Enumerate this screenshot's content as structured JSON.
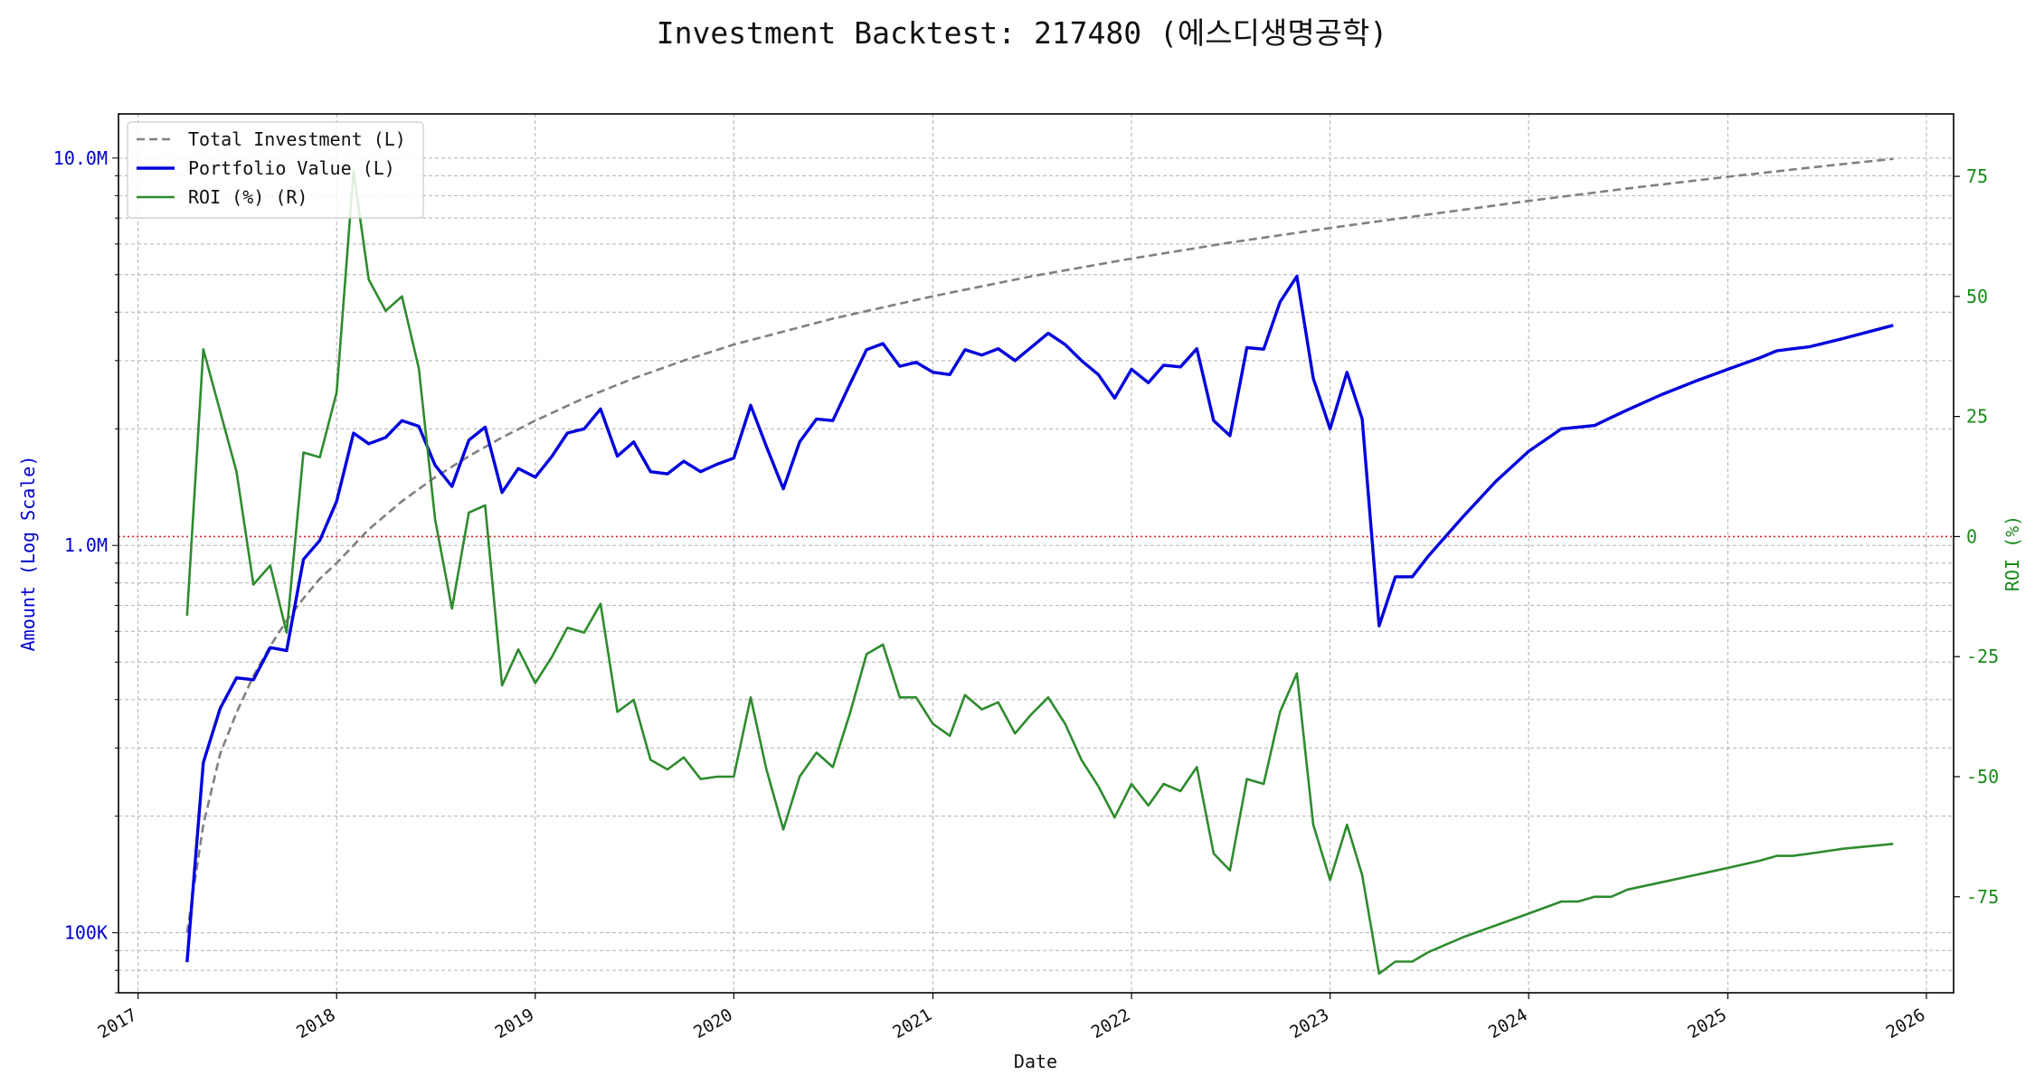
{
  "chart_data": {
    "type": "line",
    "title": "Investment Backtest: 217480 (에스디생명공학)",
    "xlabel": "Date",
    "ylabel_left": "Amount (Log Scale)",
    "ylabel_right": "ROI (%)",
    "x_range": [
      "2016-11-26",
      "2026-02-20"
    ],
    "x_ticks": [
      "2017",
      "2018",
      "2019",
      "2020",
      "2021",
      "2022",
      "2023",
      "2024",
      "2025",
      "2026"
    ],
    "y_left_scale": "log",
    "y_left_range": [
      70000,
      13000000
    ],
    "y_left_ticks": [
      {
        "value": 100000,
        "label": "100K"
      },
      {
        "value": 1000000,
        "label": "1.0M"
      },
      {
        "value": 10000000,
        "label": "10.0M"
      }
    ],
    "y_right_range": [
      -95,
      88
    ],
    "y_right_ticks": [
      -75,
      -50,
      -25,
      0,
      25,
      50,
      75
    ],
    "grid": true,
    "reference_line": {
      "axis": "right",
      "value": 0,
      "color": "#d62728",
      "style": "dotted"
    },
    "legend_position": "top-left",
    "colors": {
      "total_investment": "#808080",
      "portfolio_value": "#0000dd",
      "roi": "#2e8b2e",
      "left_axis": "#0000cc",
      "right_axis": "#1a8a1a"
    },
    "series": [
      {
        "name": "Total Investment (L)",
        "axis": "left",
        "style": "dashed",
        "color": "#808080",
        "x": [
          "2017-04-01",
          "2017-05-01",
          "2017-06-01",
          "2017-07-01",
          "2017-08-01",
          "2017-09-01",
          "2017-10-01",
          "2017-11-01",
          "2017-12-01",
          "2018-01-01",
          "2018-03-01",
          "2018-05-01",
          "2018-07-01",
          "2018-09-01",
          "2018-11-01",
          "2019-01-01",
          "2019-04-01",
          "2019-07-01",
          "2019-10-01",
          "2020-01-01",
          "2020-07-01",
          "2021-01-01",
          "2021-07-01",
          "2022-01-01",
          "2022-07-01",
          "2023-01-01",
          "2023-07-01",
          "2024-01-01",
          "2024-07-01",
          "2025-01-01",
          "2025-07-01",
          "2025-11-01"
        ],
        "values": [
          100000,
          190000,
          290000,
          370000,
          460000,
          550000,
          640000,
          730000,
          820000,
          900000,
          1100000,
          1300000,
          1500000,
          1700000,
          1900000,
          2100000,
          2400000,
          2700000,
          3000000,
          3300000,
          3850000,
          4400000,
          4950000,
          5500000,
          6050000,
          6600000,
          7150000,
          7750000,
          8350000,
          8950000,
          9550000,
          9950000
        ]
      },
      {
        "name": "Portfolio Value (L)",
        "axis": "left",
        "style": "solid",
        "color": "#0000dd",
        "x": [
          "2017-04-01",
          "2017-05-01",
          "2017-06-01",
          "2017-07-01",
          "2017-08-01",
          "2017-09-01",
          "2017-10-01",
          "2017-11-01",
          "2017-12-01",
          "2018-01-01",
          "2018-02-01",
          "2018-03-01",
          "2018-04-01",
          "2018-05-01",
          "2018-06-01",
          "2018-07-01",
          "2018-08-01",
          "2018-09-01",
          "2018-10-01",
          "2018-11-01",
          "2018-12-01",
          "2019-01-01",
          "2019-02-01",
          "2019-03-01",
          "2019-04-01",
          "2019-05-01",
          "2019-06-01",
          "2019-07-01",
          "2019-08-01",
          "2019-09-01",
          "2019-10-01",
          "2019-11-01",
          "2019-12-01",
          "2020-01-01",
          "2020-02-01",
          "2020-03-01",
          "2020-04-01",
          "2020-05-01",
          "2020-06-01",
          "2020-07-01",
          "2020-08-01",
          "2020-09-01",
          "2020-10-01",
          "2020-11-01",
          "2020-12-01",
          "2021-01-01",
          "2021-02-01",
          "2021-03-01",
          "2021-04-01",
          "2021-05-01",
          "2021-06-01",
          "2021-07-01",
          "2021-08-01",
          "2021-09-01",
          "2021-10-01",
          "2021-11-01",
          "2021-12-01",
          "2022-01-01",
          "2022-02-01",
          "2022-03-01",
          "2022-04-01",
          "2022-05-01",
          "2022-06-01",
          "2022-07-01",
          "2022-08-01",
          "2022-09-01",
          "2022-10-01",
          "2022-11-01",
          "2022-12-01",
          "2023-01-01",
          "2023-02-01",
          "2023-03-01",
          "2023-04-01",
          "2023-05-01",
          "2023-06-01",
          "2023-07-01",
          "2023-09-01",
          "2023-11-01",
          "2024-01-01",
          "2024-03-01",
          "2024-04-01",
          "2024-05-01",
          "2024-06-01",
          "2024-07-01",
          "2024-09-01",
          "2024-11-01",
          "2025-01-01",
          "2025-03-01",
          "2025-04-01",
          "2025-05-01",
          "2025-06-01",
          "2025-08-01",
          "2025-11-01"
        ],
        "values": [
          84000,
          275000,
          380000,
          455000,
          450000,
          545000,
          535000,
          920000,
          1030000,
          1300000,
          1950000,
          1830000,
          1900000,
          2100000,
          2030000,
          1610000,
          1420000,
          1870000,
          2020000,
          1370000,
          1580000,
          1500000,
          1700000,
          1950000,
          2000000,
          2250000,
          1700000,
          1850000,
          1550000,
          1530000,
          1650000,
          1550000,
          1620000,
          1680000,
          2300000,
          1800000,
          1400000,
          1850000,
          2120000,
          2100000,
          2600000,
          3200000,
          3320000,
          2900000,
          2970000,
          2800000,
          2760000,
          3200000,
          3100000,
          3220000,
          3000000,
          3250000,
          3530000,
          3300000,
          3000000,
          2760000,
          2400000,
          2850000,
          2630000,
          2920000,
          2890000,
          3220000,
          2100000,
          1920000,
          3240000,
          3210000,
          4250000,
          4950000,
          2700000,
          2000000,
          2800000,
          2120000,
          620000,
          830000,
          830000,
          940000,
          1180000,
          1460000,
          1750000,
          2000000,
          2020000,
          2040000,
          2140000,
          2240000,
          2450000,
          2650000,
          2850000,
          3050000,
          3180000,
          3220000,
          3260000,
          3420000,
          3700000
        ]
      },
      {
        "name": "ROI (%) (R)",
        "axis": "right",
        "style": "solid",
        "color": "#2e8b2e",
        "x": [
          "2017-04-01",
          "2017-05-01",
          "2017-06-01",
          "2017-07-01",
          "2017-08-01",
          "2017-09-01",
          "2017-10-01",
          "2017-11-01",
          "2017-12-01",
          "2018-01-01",
          "2018-02-01",
          "2018-03-01",
          "2018-04-01",
          "2018-05-01",
          "2018-06-01",
          "2018-07-01",
          "2018-08-01",
          "2018-09-01",
          "2018-10-01",
          "2018-11-01",
          "2018-12-01",
          "2019-01-01",
          "2019-02-01",
          "2019-03-01",
          "2019-04-01",
          "2019-05-01",
          "2019-06-01",
          "2019-07-01",
          "2019-08-01",
          "2019-09-01",
          "2019-10-01",
          "2019-11-01",
          "2019-12-01",
          "2020-01-01",
          "2020-02-01",
          "2020-03-01",
          "2020-04-01",
          "2020-05-01",
          "2020-06-01",
          "2020-07-01",
          "2020-08-01",
          "2020-09-01",
          "2020-10-01",
          "2020-11-01",
          "2020-12-01",
          "2021-01-01",
          "2021-02-01",
          "2021-03-01",
          "2021-04-01",
          "2021-05-01",
          "2021-06-01",
          "2021-07-01",
          "2021-08-01",
          "2021-09-01",
          "2021-10-01",
          "2021-11-01",
          "2021-12-01",
          "2022-01-01",
          "2022-02-01",
          "2022-03-01",
          "2022-04-01",
          "2022-05-01",
          "2022-06-01",
          "2022-07-01",
          "2022-08-01",
          "2022-09-01",
          "2022-10-01",
          "2022-11-01",
          "2022-12-01",
          "2023-01-01",
          "2023-02-01",
          "2023-03-01",
          "2023-04-01",
          "2023-05-01",
          "2023-06-01",
          "2023-07-01",
          "2023-09-01",
          "2023-11-01",
          "2024-01-01",
          "2024-03-01",
          "2024-04-01",
          "2024-05-01",
          "2024-06-01",
          "2024-07-01",
          "2024-09-01",
          "2024-11-01",
          "2025-01-01",
          "2025-03-01",
          "2025-04-01",
          "2025-05-01",
          "2025-06-01",
          "2025-08-01",
          "2025-11-01"
        ],
        "values": [
          -16.5,
          39,
          26,
          13.5,
          -10,
          -6,
          -20,
          17.5,
          16.5,
          30,
          76,
          53.5,
          47,
          50,
          35,
          3.5,
          -15,
          5,
          6.5,
          -31,
          -23.5,
          -30.5,
          -25,
          -19,
          -20,
          -14,
          -36.5,
          -34,
          -46.5,
          -48.5,
          -46,
          -50.5,
          -50,
          -50,
          -33.5,
          -48.5,
          -61,
          -50,
          -45,
          -48,
          -37,
          -24.5,
          -22.5,
          -33.5,
          -33.5,
          -39,
          -41.5,
          -33,
          -36,
          -34.5,
          -41,
          -37,
          -33.5,
          -39,
          -46.5,
          -52,
          -58.5,
          -51.5,
          -56,
          -51.5,
          -53,
          -48,
          -66,
          -69.5,
          -50.5,
          -51.5,
          -36.5,
          -28.5,
          -60,
          -71.5,
          -60,
          -70.5,
          -91,
          -88.5,
          -88.5,
          -86.5,
          -83.5,
          -81,
          -78.5,
          -76,
          -76,
          -75,
          -75,
          -73.5,
          -72,
          -70.5,
          -69,
          -67.5,
          -66.5,
          -66.5,
          -66,
          -65,
          -64
        ]
      }
    ]
  }
}
